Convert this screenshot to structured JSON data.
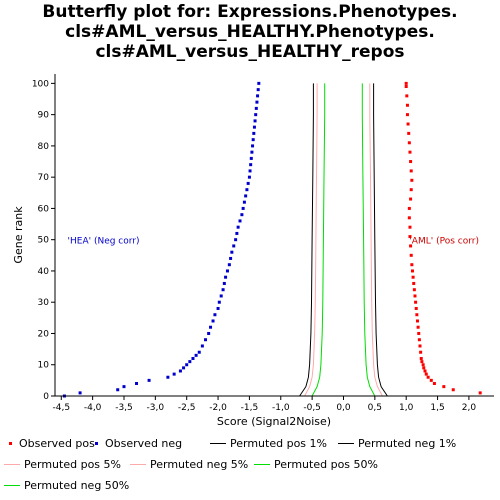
{
  "title_lines": [
    "Butterfly plot for: Expressions.Phenotypes.",
    "cls#AML_versus_HEALTHY.Phenotypes.",
    "cls#AML_versus_HEALTHY_repos"
  ],
  "chart_data": {
    "type": "scatter",
    "xlabel": "Score (Signal2Noise)",
    "ylabel": "Gene rank",
    "xlim": [
      -4.6,
      2.4
    ],
    "ylim": [
      0,
      103
    ],
    "x_ticks": [
      "-4,5",
      "-4,0",
      "-3,5",
      "-3,0",
      "-2,5",
      "-2,0",
      "-1,5",
      "-1,0",
      "-0,5",
      "0,0",
      "0,5",
      "1,0",
      "1,5",
      "2,0"
    ],
    "x_tick_values": [
      -4.5,
      -4.0,
      -3.5,
      -3.0,
      -2.5,
      -2.0,
      -1.5,
      -1.0,
      -0.5,
      0.0,
      0.5,
      1.0,
      1.5,
      2.0
    ],
    "y_ticks": [
      "0",
      "10",
      "20",
      "30",
      "40",
      "50",
      "60",
      "70",
      "80",
      "90",
      "100"
    ],
    "y_tick_values": [
      0,
      10,
      20,
      30,
      40,
      50,
      60,
      70,
      80,
      90,
      100
    ],
    "annotations": [
      {
        "text": "'HEA' (Neg corr)",
        "x": -4.4,
        "y": 50,
        "color": "#0000cc"
      },
      {
        "text": "'AML' (Pos corr)",
        "x": 1.05,
        "y": 50,
        "color": "#cc0000"
      }
    ],
    "series": [
      {
        "name": "Observed pos",
        "kind": "points",
        "color": "#ff0000",
        "points": [
          [
            2.18,
            1
          ],
          [
            1.75,
            2
          ],
          [
            1.6,
            3
          ],
          [
            1.45,
            4
          ],
          [
            1.4,
            5
          ],
          [
            1.35,
            6
          ],
          [
            1.32,
            7
          ],
          [
            1.3,
            8
          ],
          [
            1.28,
            9
          ],
          [
            1.27,
            10
          ],
          [
            1.25,
            11
          ],
          [
            1.24,
            12
          ],
          [
            1.23,
            14
          ],
          [
            1.22,
            16
          ],
          [
            1.21,
            18
          ],
          [
            1.2,
            20
          ],
          [
            1.19,
            22
          ],
          [
            1.18,
            24
          ],
          [
            1.17,
            26
          ],
          [
            1.16,
            28
          ],
          [
            1.15,
            30
          ],
          [
            1.14,
            32
          ],
          [
            1.13,
            34
          ],
          [
            1.12,
            36
          ],
          [
            1.11,
            38
          ],
          [
            1.1,
            40
          ],
          [
            1.09,
            42
          ],
          [
            1.08,
            45
          ],
          [
            1.07,
            48
          ],
          [
            1.06,
            51
          ],
          [
            1.06,
            54
          ],
          [
            1.05,
            57
          ],
          [
            1.05,
            60
          ],
          [
            1.07,
            63
          ],
          [
            1.08,
            66
          ],
          [
            1.09,
            69
          ],
          [
            1.08,
            72
          ],
          [
            1.07,
            75
          ],
          [
            1.06,
            78
          ],
          [
            1.05,
            81
          ],
          [
            1.04,
            84
          ],
          [
            1.03,
            87
          ],
          [
            1.02,
            90
          ],
          [
            1.02,
            93
          ],
          [
            1.01,
            96
          ],
          [
            1.0,
            99
          ],
          [
            1.0,
            100
          ]
        ]
      },
      {
        "name": "Observed neg",
        "kind": "points",
        "color": "#0000cc",
        "points": [
          [
            -4.45,
            0
          ],
          [
            -4.2,
            1
          ],
          [
            -3.6,
            2
          ],
          [
            -3.5,
            3
          ],
          [
            -3.3,
            4
          ],
          [
            -3.1,
            5
          ],
          [
            -2.8,
            6
          ],
          [
            -2.7,
            7
          ],
          [
            -2.6,
            8
          ],
          [
            -2.55,
            9
          ],
          [
            -2.5,
            10
          ],
          [
            -2.45,
            11
          ],
          [
            -2.4,
            12
          ],
          [
            -2.35,
            13
          ],
          [
            -2.3,
            14
          ],
          [
            -2.25,
            16
          ],
          [
            -2.2,
            18
          ],
          [
            -2.15,
            20
          ],
          [
            -2.12,
            22
          ],
          [
            -2.08,
            24
          ],
          [
            -2.05,
            26
          ],
          [
            -2.0,
            28
          ],
          [
            -1.98,
            30
          ],
          [
            -1.95,
            32
          ],
          [
            -1.92,
            34
          ],
          [
            -1.9,
            36
          ],
          [
            -1.88,
            38
          ],
          [
            -1.85,
            40
          ],
          [
            -1.82,
            42
          ],
          [
            -1.8,
            44
          ],
          [
            -1.78,
            46
          ],
          [
            -1.75,
            48
          ],
          [
            -1.72,
            50
          ],
          [
            -1.7,
            52
          ],
          [
            -1.68,
            54
          ],
          [
            -1.65,
            56
          ],
          [
            -1.62,
            58
          ],
          [
            -1.6,
            60
          ],
          [
            -1.58,
            62
          ],
          [
            -1.56,
            64
          ],
          [
            -1.54,
            66
          ],
          [
            -1.52,
            68
          ],
          [
            -1.5,
            70
          ],
          [
            -1.49,
            72
          ],
          [
            -1.48,
            74
          ],
          [
            -1.47,
            76
          ],
          [
            -1.46,
            78
          ],
          [
            -1.45,
            80
          ],
          [
            -1.44,
            82
          ],
          [
            -1.43,
            84
          ],
          [
            -1.42,
            86
          ],
          [
            -1.41,
            88
          ],
          [
            -1.4,
            90
          ],
          [
            -1.39,
            92
          ],
          [
            -1.38,
            94
          ],
          [
            -1.37,
            96
          ],
          [
            -1.36,
            98
          ],
          [
            -1.35,
            100
          ]
        ]
      },
      {
        "name": "Permuted pos 1%",
        "kind": "line",
        "color": "#000000",
        "points": [
          [
            0.7,
            0
          ],
          [
            0.6,
            3
          ],
          [
            0.56,
            6
          ],
          [
            0.54,
            10
          ],
          [
            0.52,
            20
          ],
          [
            0.51,
            30
          ],
          [
            0.5,
            50
          ],
          [
            0.49,
            70
          ],
          [
            0.48,
            90
          ],
          [
            0.48,
            100
          ]
        ]
      },
      {
        "name": "Permuted neg 1%",
        "kind": "line",
        "color": "#000000",
        "points": [
          [
            -0.7,
            0
          ],
          [
            -0.6,
            3
          ],
          [
            -0.56,
            6
          ],
          [
            -0.54,
            10
          ],
          [
            -0.52,
            20
          ],
          [
            -0.51,
            30
          ],
          [
            -0.5,
            50
          ],
          [
            -0.49,
            70
          ],
          [
            -0.48,
            90
          ],
          [
            -0.48,
            100
          ]
        ]
      },
      {
        "name": "Permuted pos 5%",
        "kind": "line",
        "color": "#ffaaaa",
        "points": [
          [
            0.62,
            0
          ],
          [
            0.54,
            3
          ],
          [
            0.5,
            6
          ],
          [
            0.48,
            10
          ],
          [
            0.46,
            20
          ],
          [
            0.45,
            30
          ],
          [
            0.44,
            50
          ],
          [
            0.43,
            70
          ],
          [
            0.42,
            90
          ],
          [
            0.42,
            100
          ]
        ]
      },
      {
        "name": "Permuted neg 5%",
        "kind": "line",
        "color": "#ffaaaa",
        "points": [
          [
            -0.62,
            0
          ],
          [
            -0.54,
            3
          ],
          [
            -0.5,
            6
          ],
          [
            -0.48,
            10
          ],
          [
            -0.46,
            20
          ],
          [
            -0.45,
            30
          ],
          [
            -0.44,
            50
          ],
          [
            -0.43,
            70
          ],
          [
            -0.42,
            90
          ],
          [
            -0.42,
            100
          ]
        ]
      },
      {
        "name": "Permuted pos 50%",
        "kind": "line",
        "color": "#00dd00",
        "points": [
          [
            0.5,
            0
          ],
          [
            0.42,
            3
          ],
          [
            0.38,
            6
          ],
          [
            0.36,
            10
          ],
          [
            0.34,
            20
          ],
          [
            0.33,
            30
          ],
          [
            0.32,
            50
          ],
          [
            0.31,
            70
          ],
          [
            0.3,
            90
          ],
          [
            0.3,
            100
          ]
        ]
      },
      {
        "name": "Permuted neg 50%",
        "kind": "line",
        "color": "#00dd00",
        "points": [
          [
            -0.5,
            0
          ],
          [
            -0.42,
            3
          ],
          [
            -0.38,
            6
          ],
          [
            -0.36,
            10
          ],
          [
            -0.34,
            20
          ],
          [
            -0.33,
            30
          ],
          [
            -0.32,
            50
          ],
          [
            -0.31,
            70
          ],
          [
            -0.3,
            90
          ],
          [
            -0.3,
            100
          ]
        ]
      }
    ],
    "legend_position": "bottom"
  }
}
